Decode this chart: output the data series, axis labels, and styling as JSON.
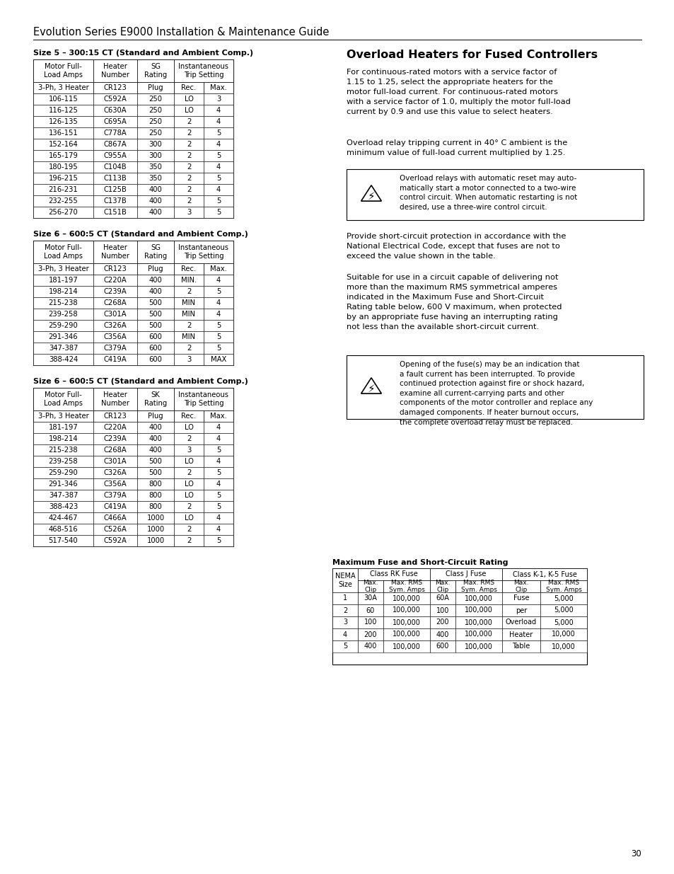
{
  "page_title": "Evolution Series E9000 Installation & Maintenance Guide",
  "page_number": "30",
  "background_color": "#ffffff",
  "table1_title": "Size 5 – 300:15 CT (Standard and Ambient Comp.)",
  "table1_data": [
    [
      "106-115",
      "C592A",
      "250",
      "LO",
      "3"
    ],
    [
      "116-125",
      "C630A",
      "250",
      "LO",
      "4"
    ],
    [
      "126-135",
      "C695A",
      "250",
      "2",
      "4"
    ],
    [
      "136-151",
      "C778A",
      "250",
      "2",
      "5"
    ],
    [
      "152-164",
      "C867A",
      "300",
      "2",
      "4"
    ],
    [
      "165-179",
      "C955A",
      "300",
      "2",
      "5"
    ],
    [
      "180-195",
      "C104B",
      "350",
      "2",
      "4"
    ],
    [
      "196-215",
      "C113B",
      "350",
      "2",
      "5"
    ],
    [
      "216-231",
      "C125B",
      "400",
      "2",
      "4"
    ],
    [
      "232-255",
      "C137B",
      "400",
      "2",
      "5"
    ],
    [
      "256-270",
      "C151B",
      "400",
      "3",
      "5"
    ]
  ],
  "table2_title": "Size 6 – 600:5 CT (Standard and Ambient Comp.)",
  "table2_col3": "SG",
  "table2_data": [
    [
      "181-197",
      "C220A",
      "400",
      "MIN.",
      "4"
    ],
    [
      "198-214",
      "C239A",
      "400",
      "2",
      "5"
    ],
    [
      "215-238",
      "C268A",
      "500",
      "MIN",
      "4"
    ],
    [
      "239-258",
      "C301A",
      "500",
      "MIN",
      "4"
    ],
    [
      "259-290",
      "C326A",
      "500",
      "2",
      "5"
    ],
    [
      "291-346",
      "C356A",
      "600",
      "MIN",
      "5"
    ],
    [
      "347-387",
      "C379A",
      "600",
      "2",
      "5"
    ],
    [
      "388-424",
      "C419A",
      "600",
      "3",
      "MAX"
    ]
  ],
  "table3_title": "Size 6 – 600:5 CT (Standard and Ambient Comp.)",
  "table3_col3": "SK",
  "table3_data": [
    [
      "181-197",
      "C220A",
      "400",
      "LO",
      "4"
    ],
    [
      "198-214",
      "C239A",
      "400",
      "2",
      "4"
    ],
    [
      "215-238",
      "C268A",
      "400",
      "3",
      "5"
    ],
    [
      "239-258",
      "C301A",
      "500",
      "LO",
      "4"
    ],
    [
      "259-290",
      "C326A",
      "500",
      "2",
      "5"
    ],
    [
      "291-346",
      "C356A",
      "800",
      "LO",
      "4"
    ],
    [
      "347-387",
      "C379A",
      "800",
      "LO",
      "5"
    ],
    [
      "388-423",
      "C419A",
      "800",
      "2",
      "5"
    ],
    [
      "424-467",
      "C466A",
      "1000",
      "LO",
      "4"
    ],
    [
      "468-516",
      "C526A",
      "1000",
      "2",
      "4"
    ],
    [
      "517-540",
      "C592A",
      "1000",
      "2",
      "5"
    ]
  ],
  "right_title": "Overload Heaters for Fused Controllers",
  "right_para1": "For continuous-rated motors with a service factor of\n1.15 to 1.25, select the appropriate heaters for the\nmotor full-load current. For continuous-rated motors\nwith a service factor of 1.0, multiply the motor full-load\ncurrent by 0.9 and use this value to select heaters.",
  "right_para2": "Overload relay tripping current in 40° C ambient is the\nminimum value of full-load current multiplied by 1.25.",
  "warning1_text": "Overload relays with automatic reset may auto-\nmatically start a motor connected to a two-wire\ncontrol circuit. When automatic restarting is not\ndesired, use a three-wire control circuit.",
  "right_para3": "Provide short-circuit protection in accordance with the\nNational Electrical Code, except that fuses are not to\nexceed the value shown in the table.",
  "right_para4": "Suitable for use in a circuit capable of delivering not\nmore than the maximum RMS symmetrical amperes\nindicated in the Maximum Fuse and Short-Circuit\nRating table below, 600 V maximum, when protected\nby an appropriate fuse having an interrupting rating\nnot less than the available short-circuit current.",
  "warning2_text": "Opening of the fuse(s) may be an indication that\na fault current has been interrupted. To provide\ncontinued protection against fire or shock hazard,\nexamine all current-carrying parts and other\ncomponents of the motor controller and replace any\ndamaged components. If heater burnout occurs,\nthe complete overload relay must be replaced.",
  "fuse_table_title": "Maximum Fuse and Short-Circuit Rating",
  "fuse_table_data": [
    [
      "1",
      "30A",
      "100,000",
      "60A",
      "100,000",
      "Fuse",
      "5,000"
    ],
    [
      "2",
      "60",
      "100,000",
      "100",
      "100,000",
      "per",
      "5,000"
    ],
    [
      "3",
      "100",
      "100,000",
      "200",
      "100,000",
      "Overload",
      "5,000"
    ],
    [
      "4",
      "200",
      "100,000",
      "400",
      "100,000",
      "Heater",
      "10,000"
    ],
    [
      "5",
      "400",
      "100,000",
      "600",
      "100,000",
      "Table",
      "10,000"
    ]
  ]
}
